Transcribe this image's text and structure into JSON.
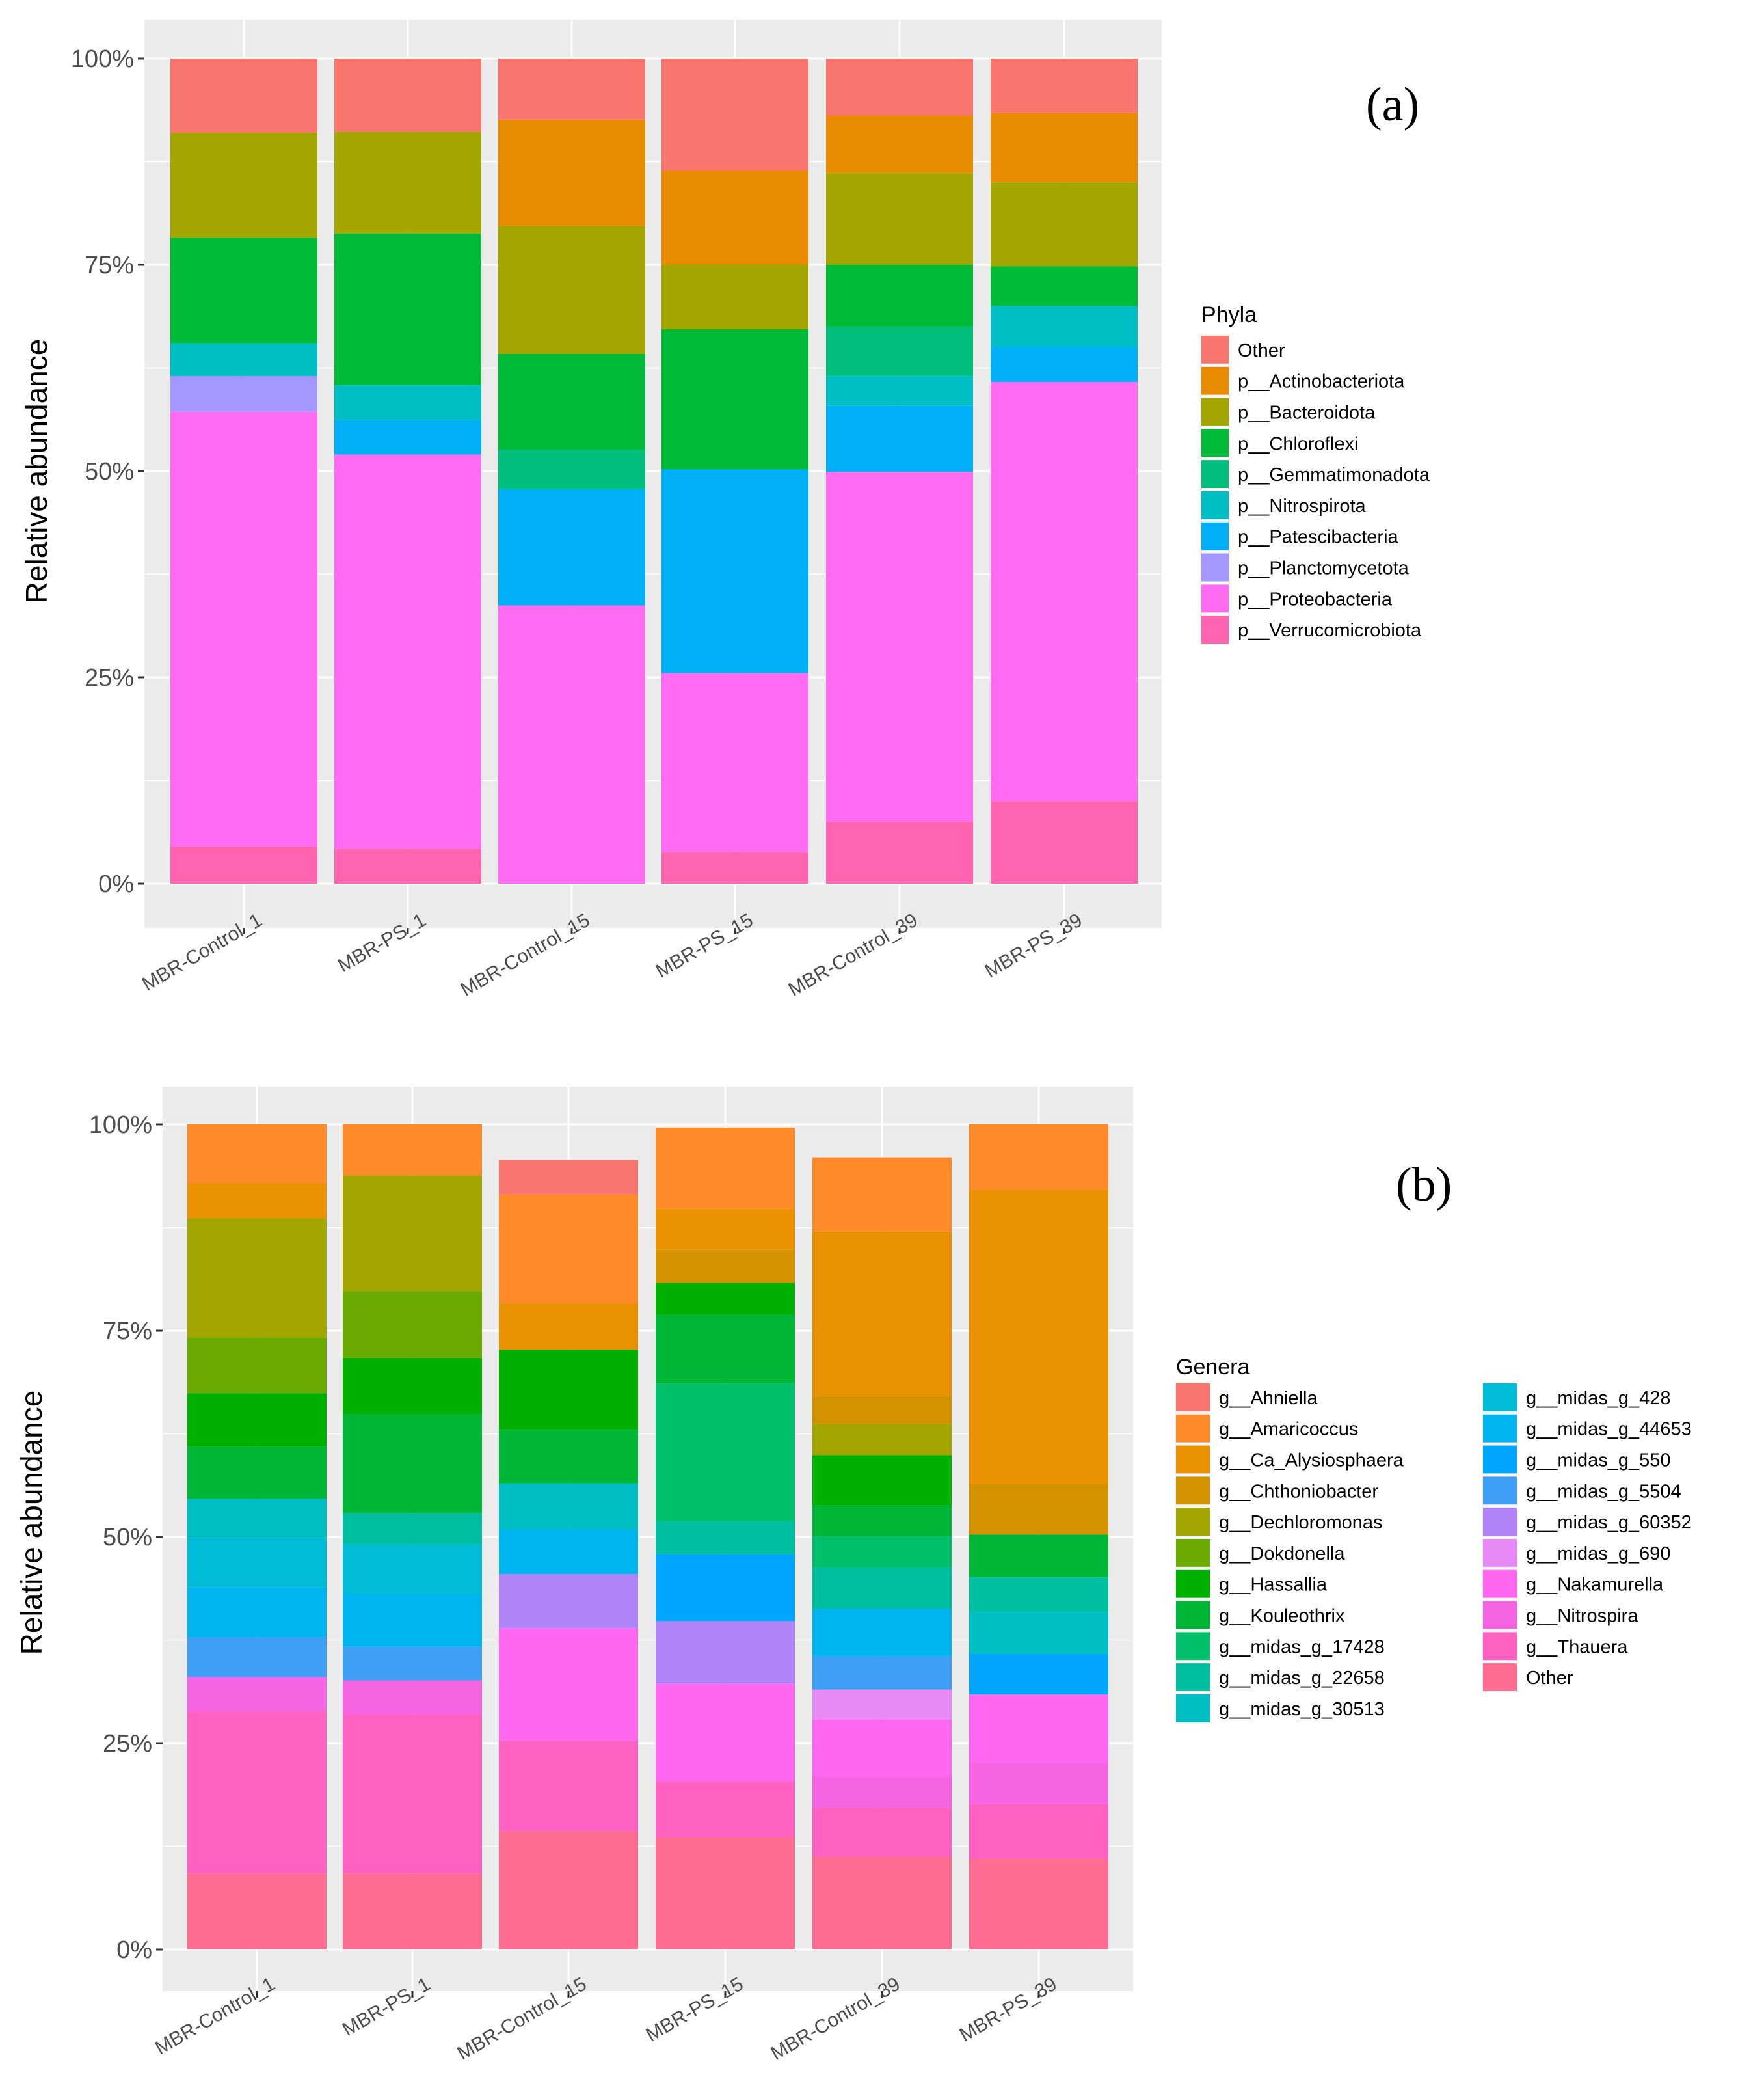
{
  "chart_data": [
    {
      "type": "bar",
      "stacked": true,
      "panel_label": "(a)",
      "ylabel": "Relative abundance",
      "xlabel": "",
      "ylim": [
        0,
        100
      ],
      "yticks": [
        "0%",
        "25%",
        "50%",
        "75%",
        "100%"
      ],
      "categories": [
        "MBR-Control_1",
        "MBR-PS_1",
        "MBR-Control_15",
        "MBR-PS_15",
        "MBR-Control_39",
        "MBR-PS_39"
      ],
      "legend_title": "Phyla",
      "legend_position": "right",
      "series": [
        {
          "name": "p__Verrucomicrobiota",
          "color": "#FF64B0",
          "values": [
            4.5,
            4.2,
            0,
            3.8,
            7.5,
            10.0
          ]
        },
        {
          "name": "p__Proteobacteria",
          "color": "#FF6CF2",
          "values": [
            52.7,
            47.8,
            33.7,
            21.7,
            42.4,
            50.8
          ]
        },
        {
          "name": "p__Planctomycetota",
          "color": "#A497FF",
          "values": [
            4.3,
            0,
            0,
            0,
            0,
            0
          ]
        },
        {
          "name": "p__Patescibacteria",
          "color": "#00B0F6",
          "values": [
            0,
            4.2,
            14.1,
            24.7,
            8.0,
            4.3
          ]
        },
        {
          "name": "p__Nitrospirota",
          "color": "#00BFC4",
          "values": [
            4.0,
            4.2,
            0,
            0,
            3.6,
            4.9
          ]
        },
        {
          "name": "p__Gemmatimonadota",
          "color": "#00BF7D",
          "values": [
            0,
            0,
            4.8,
            0,
            6.0,
            0
          ]
        },
        {
          "name": "p__Chloroflexi",
          "color": "#00BA38",
          "values": [
            12.8,
            18.4,
            11.6,
            17.0,
            7.5,
            4.8
          ]
        },
        {
          "name": "p__Bacteroidota",
          "color": "#A3A500",
          "values": [
            12.7,
            12.3,
            15.5,
            7.8,
            11.1,
            10.2
          ]
        },
        {
          "name": "p__Actinobacteriota",
          "color": "#E88B00",
          "values": [
            0,
            0,
            12.9,
            11.4,
            7.0,
            8.4
          ]
        },
        {
          "name": "Other",
          "color": "#F8766D",
          "values": [
            9.0,
            8.9,
            7.4,
            13.6,
            6.9,
            6.6
          ]
        }
      ],
      "legend_order": [
        "Other",
        "p__Actinobacteriota",
        "p__Bacteroidota",
        "p__Chloroflexi",
        "p__Gemmatimonadota",
        "p__Nitrospirota",
        "p__Patescibacteria",
        "p__Planctomycetota",
        "p__Proteobacteria",
        "p__Verrucomicrobiota"
      ]
    },
    {
      "type": "bar",
      "stacked": true,
      "panel_label": "(b)",
      "ylabel": "Relative abundance",
      "xlabel": "",
      "ylim": [
        0,
        100
      ],
      "yticks": [
        "0%",
        "25%",
        "50%",
        "75%",
        "100%"
      ],
      "categories": [
        "MBR-Control_1",
        "MBR-PS_1",
        "MBR-Control_15",
        "MBR-PS_15",
        "MBR-Control_39",
        "MBR-PS_39"
      ],
      "legend_title": "Genera",
      "legend_position": "right",
      "series": [
        {
          "name": "Other",
          "color": "#FF6C91",
          "values": [
            9.2,
            9.2,
            14.3,
            13.6,
            11.2,
            11.0
          ]
        },
        {
          "name": "g__Thauera",
          "color": "#FF61C3",
          "values": [
            19.7,
            19.3,
            11.0,
            6.8,
            6.0,
            6.6
          ]
        },
        {
          "name": "g__Nitrospira",
          "color": "#F564E3",
          "values": [
            4.1,
            4.1,
            0,
            0,
            3.7,
            5.0
          ]
        },
        {
          "name": "g__Nakamurella",
          "color": "#FF67F0",
          "values": [
            0,
            0,
            13.6,
            11.8,
            7.0,
            8.3
          ]
        },
        {
          "name": "g__midas_g_690",
          "color": "#E88AF6",
          "values": [
            0,
            0,
            0,
            0,
            3.6,
            0
          ]
        },
        {
          "name": "g__midas_g_60352",
          "color": "#B084F7",
          "values": [
            0,
            0,
            6.6,
            7.6,
            0,
            0
          ]
        },
        {
          "name": "g__midas_g_5504",
          "color": "#3F9FF5",
          "values": [
            4.8,
            4.1,
            0,
            0,
            4.0,
            0
          ]
        },
        {
          "name": "g__midas_g_550",
          "color": "#00A6FF",
          "values": [
            0,
            0,
            0,
            8.1,
            0,
            4.9
          ]
        },
        {
          "name": "g__midas_g_44653",
          "color": "#00B4F0",
          "values": [
            6.1,
            6.4,
            5.4,
            0,
            5.8,
            0
          ]
        },
        {
          "name": "g__midas_g_428",
          "color": "#00BCD6",
          "values": [
            6.0,
            6.0,
            0,
            0,
            0,
            0
          ]
        },
        {
          "name": "g__midas_g_30513",
          "color": "#00BFC4",
          "values": [
            4.7,
            0,
            5.6,
            0,
            0,
            5.1
          ]
        },
        {
          "name": "g__midas_g_22658",
          "color": "#00BEA0",
          "values": [
            0,
            3.8,
            0,
            4.0,
            5.0,
            4.2
          ]
        },
        {
          "name": "g__midas_g_17428",
          "color": "#00C06B",
          "values": [
            0,
            0,
            0,
            16.7,
            3.8,
            0
          ]
        },
        {
          "name": "g__Kouleothrix",
          "color": "#00B636",
          "values": [
            6.3,
            12.0,
            6.5,
            8.3,
            3.7,
            5.2
          ]
        },
        {
          "name": "g__Hassallia",
          "color": "#00B000",
          "values": [
            6.5,
            6.8,
            9.7,
            3.9,
            6.1,
            0
          ]
        },
        {
          "name": "g__Dokdonella",
          "color": "#6BAA00",
          "values": [
            6.8,
            8.1,
            0,
            0,
            0,
            0
          ]
        },
        {
          "name": "g__Dechloromonas",
          "color": "#A3A500",
          "values": [
            14.4,
            14.0,
            0,
            0,
            3.8,
            0
          ]
        },
        {
          "name": "g__Chthoniobacter",
          "color": "#D39200",
          "values": [
            0,
            0,
            0,
            4.0,
            3.4,
            6.1
          ]
        },
        {
          "name": "g__Ca_Alysiosphaera",
          "color": "#E99100",
          "values": [
            4.3,
            0,
            5.6,
            5.0,
            19.9,
            35.7
          ]
        },
        {
          "name": "g__Amaricoccus",
          "color": "#FF8A2A",
          "values": [
            7.1,
            6.2,
            13.2,
            9.8,
            9.0,
            7.9
          ]
        },
        {
          "name": "g__Ahniella",
          "color": "#F8766D",
          "values": [
            0,
            0,
            4.2,
            0,
            0,
            0
          ]
        }
      ],
      "legend_order": [
        "g__Ahniella",
        "g__Amaricoccus",
        "g__Ca_Alysiosphaera",
        "g__Chthoniobacter",
        "g__Dechloromonas",
        "g__Dokdonella",
        "g__Hassallia",
        "g__Kouleothrix",
        "g__midas_g_17428",
        "g__midas_g_22658",
        "g__midas_g_30513",
        "g__midas_g_428",
        "g__midas_g_44653",
        "g__midas_g_550",
        "g__midas_g_5504",
        "g__midas_g_60352",
        "g__midas_g_690",
        "g__Nakamurella",
        "g__Nitrospira",
        "g__Thauera",
        "Other"
      ]
    }
  ]
}
